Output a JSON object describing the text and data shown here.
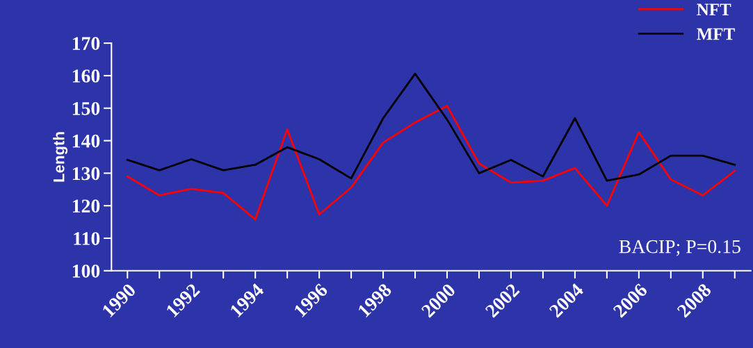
{
  "chart_data": {
    "type": "line",
    "ylabel": "Length",
    "categories": [
      "1990",
      null,
      "1992",
      null,
      "1994",
      null,
      "1996",
      null,
      "1998",
      null,
      "2000",
      null,
      "2002",
      null,
      "2004",
      null,
      "2006",
      null,
      "2008",
      null
    ],
    "series": [
      {
        "name": "NFT",
        "color": "#ff0000",
        "values": [
          129,
          123.2,
          125.2,
          123.9,
          115.8,
          143.5,
          117.3,
          125.6,
          139.4,
          145.6,
          150.7,
          133,
          127.1,
          127.7,
          131.6,
          120,
          142.6,
          128.1,
          123.2,
          130.7
        ]
      },
      {
        "name": "MFT",
        "color": "#000000",
        "values": [
          134.1,
          130.9,
          134.3,
          130.9,
          132.6,
          138,
          134.3,
          128.4,
          146.9,
          160.6,
          146.5,
          130,
          134.1,
          129,
          146.9,
          127.7,
          129.6,
          135.4,
          135.4,
          132.6
        ]
      }
    ],
    "ylim": [
      100,
      170
    ],
    "yticks": [
      100,
      110,
      120,
      130,
      140,
      150,
      160,
      170
    ],
    "annotations": [
      "BACIP; P=0.15"
    ],
    "legend": "top right",
    "grid": false,
    "marker": "none",
    "line_style": "solid"
  }
}
